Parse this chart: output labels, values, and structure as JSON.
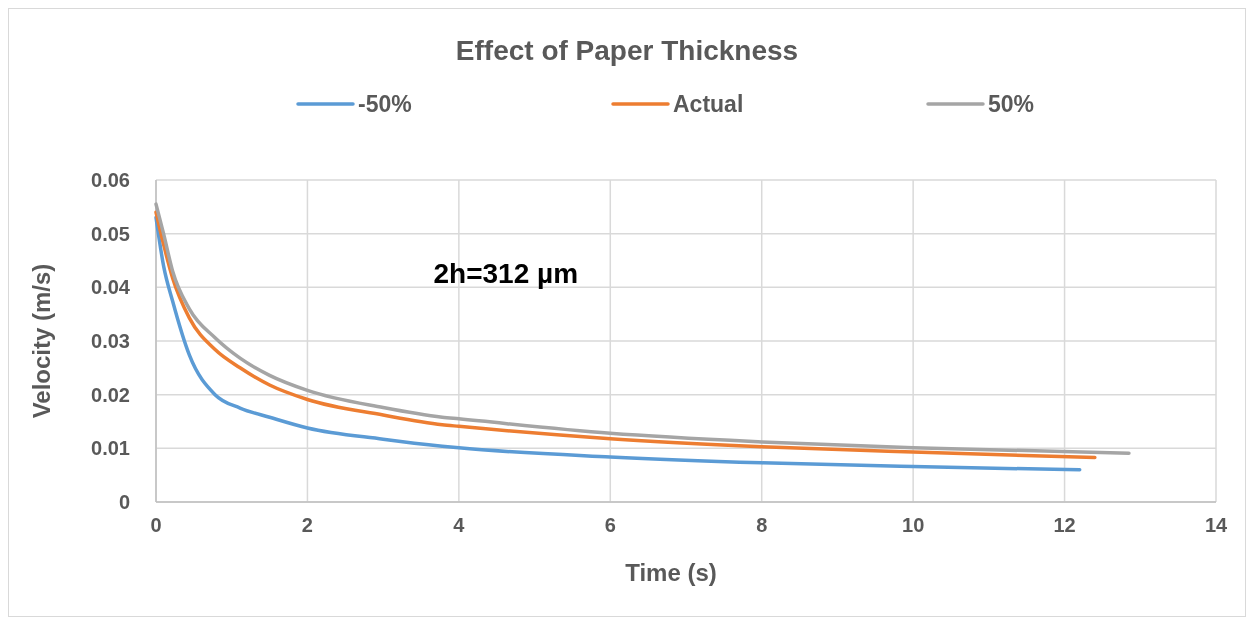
{
  "chart_data": {
    "type": "line",
    "title": "Effect of Paper Thickness",
    "xlabel": "Time (s)",
    "ylabel": "Velocity (m/s)",
    "xlim": [
      0,
      14
    ],
    "xticks": [
      0,
      2,
      4,
      6,
      8,
      10,
      12,
      14
    ],
    "ylim": [
      0,
      0.06
    ],
    "yticks": [
      0,
      0.01,
      0.02,
      0.03,
      0.04,
      0.05,
      0.06
    ],
    "grid": true,
    "legend": "top",
    "marker": "none",
    "line_style": "solid",
    "annotations": [
      "2h=312 µm"
    ],
    "series": [
      {
        "name": "-50%",
        "color": "#5b9bd5",
        "x": [
          0,
          0.1,
          0.22,
          0.44,
          0.78,
          1.11,
          1.5,
          2,
          3,
          3.78,
          4,
          6,
          8,
          10,
          12.2
        ],
        "values": [
          0.053,
          0.044,
          0.0374,
          0.0274,
          0.02,
          0.0175,
          0.0158,
          0.0138,
          0.0117,
          0.0104,
          0.0101,
          0.0084,
          0.0073,
          0.0066,
          0.006
        ]
      },
      {
        "name": "Actual",
        "color": "#ed7d31",
        "x": [
          0,
          0.1,
          0.22,
          0.44,
          0.78,
          1.11,
          1.5,
          2,
          3,
          3.78,
          4,
          6,
          8,
          10,
          12.4
        ],
        "values": [
          0.054,
          0.048,
          0.0417,
          0.0343,
          0.0284,
          0.025,
          0.0218,
          0.0191,
          0.0162,
          0.0144,
          0.0141,
          0.0118,
          0.0103,
          0.0093,
          0.0083
        ]
      },
      {
        "name": "50%",
        "color": "#a5a5a5",
        "x": [
          0,
          0.1,
          0.22,
          0.44,
          0.78,
          1.11,
          1.5,
          2,
          3,
          3.78,
          4,
          6,
          8,
          10,
          12.85
        ],
        "values": [
          0.0555,
          0.05,
          0.043,
          0.036,
          0.0306,
          0.0268,
          0.0236,
          0.0208,
          0.0176,
          0.0158,
          0.0155,
          0.0128,
          0.0112,
          0.0101,
          0.0091
        ]
      }
    ]
  }
}
